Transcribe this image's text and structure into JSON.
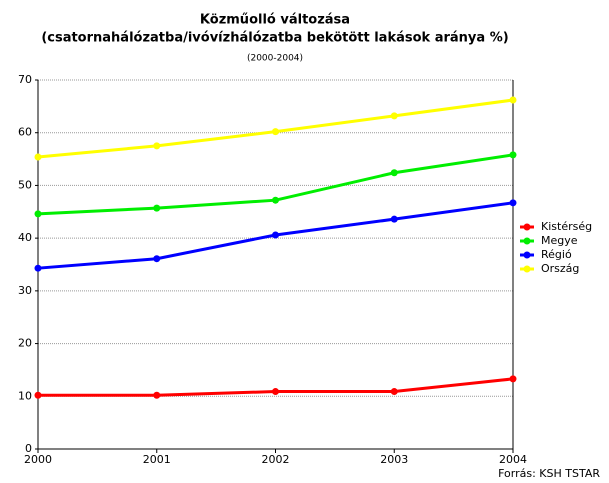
{
  "chart_data": {
    "type": "line",
    "title": "Közműolló változása",
    "subtitle": "(csatornahálózatba/ivóvízhálózatba bekötött lakások aránya %)",
    "period": "(2000-2004)",
    "source": "Forrás: KSH TSTAR",
    "x": [
      2000,
      2001,
      2002,
      2003,
      2004
    ],
    "xlim": [
      2000,
      2004
    ],
    "xticks": [
      2000,
      2001,
      2002,
      2003,
      2004
    ],
    "ylim": [
      0,
      70
    ],
    "yticks": [
      0,
      10,
      20,
      30,
      40,
      50,
      60,
      70
    ],
    "grid": true,
    "legend": "right",
    "series": [
      {
        "name": "Kistérség",
        "color": "#ff0000",
        "values": [
          10.2,
          10.2,
          10.9,
          10.9,
          13.3
        ]
      },
      {
        "name": "Megye",
        "color": "#00ee00",
        "values": [
          44.6,
          45.7,
          47.2,
          52.4,
          55.8
        ]
      },
      {
        "name": "Régió",
        "color": "#0000ff",
        "values": [
          34.3,
          36.1,
          40.6,
          43.6,
          46.7
        ]
      },
      {
        "name": "Ország",
        "color": "#ffff00",
        "values": [
          55.4,
          57.5,
          60.2,
          63.2,
          66.2
        ]
      }
    ]
  }
}
